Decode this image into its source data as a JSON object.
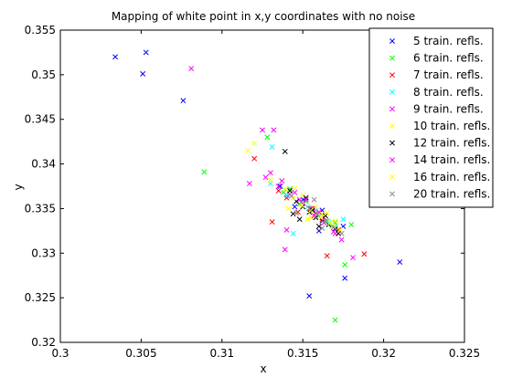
{
  "chart_data": {
    "type": "scatter",
    "title": "Mapping of white point in x,y coordinates with no noise",
    "xlabel": "x",
    "ylabel": "y",
    "xlim": [
      0.3,
      0.325
    ],
    "ylim": [
      0.32,
      0.355
    ],
    "xticks": [
      "0.3",
      "0.305",
      "0.31",
      "0.315",
      "0.32",
      "0.325"
    ],
    "yticks": [
      "0.32",
      "0.325",
      "0.33",
      "0.335",
      "0.34",
      "0.345",
      "0.35",
      "0.355"
    ],
    "grid": false,
    "legend_position": "top-right",
    "marker": "x",
    "series": [
      {
        "name": "5 train. refls.",
        "color": "#0000ff",
        "points": [
          [
            0.3034,
            0.352
          ],
          [
            0.3053,
            0.3525
          ],
          [
            0.3051,
            0.3501
          ],
          [
            0.3076,
            0.3471
          ],
          [
            0.3154,
            0.3252
          ],
          [
            0.3176,
            0.3272
          ],
          [
            0.321,
            0.329
          ],
          [
            0.3136,
            0.3375
          ],
          [
            0.315,
            0.336
          ],
          [
            0.3162,
            0.3348
          ],
          [
            0.3145,
            0.3352
          ],
          [
            0.3158,
            0.334
          ],
          [
            0.3168,
            0.333
          ],
          [
            0.314,
            0.3365
          ],
          [
            0.3175,
            0.333
          ],
          [
            0.316,
            0.3325
          ]
        ]
      },
      {
        "name": "6 train. refls.",
        "color": "#00ff00",
        "points": [
          [
            0.3089,
            0.3391
          ],
          [
            0.317,
            0.3225
          ],
          [
            0.3176,
            0.3287
          ],
          [
            0.318,
            0.3332
          ],
          [
            0.3128,
            0.343
          ],
          [
            0.3142,
            0.3372
          ],
          [
            0.3152,
            0.3358
          ],
          [
            0.316,
            0.3342
          ],
          [
            0.3165,
            0.3336
          ],
          [
            0.3148,
            0.3355
          ],
          [
            0.3138,
            0.3368
          ],
          [
            0.317,
            0.3334
          ]
        ]
      },
      {
        "name": "7 train. refls.",
        "color": "#ff0000",
        "points": [
          [
            0.3188,
            0.3299
          ],
          [
            0.3131,
            0.3335
          ],
          [
            0.3165,
            0.3297
          ],
          [
            0.312,
            0.3406
          ],
          [
            0.314,
            0.3362
          ],
          [
            0.3155,
            0.335
          ],
          [
            0.3162,
            0.3338
          ],
          [
            0.3147,
            0.3346
          ],
          [
            0.3172,
            0.3326
          ],
          [
            0.3135,
            0.337
          ],
          [
            0.3158,
            0.3345
          ]
        ]
      },
      {
        "name": "8 train. refls.",
        "color": "#00ffff",
        "points": [
          [
            0.3131,
            0.3419
          ],
          [
            0.3144,
            0.3322
          ],
          [
            0.3148,
            0.336
          ],
          [
            0.3158,
            0.3348
          ],
          [
            0.3166,
            0.3335
          ],
          [
            0.314,
            0.3365
          ],
          [
            0.3153,
            0.3352
          ],
          [
            0.317,
            0.3328
          ],
          [
            0.313,
            0.3378
          ],
          [
            0.3175,
            0.3338
          ]
        ]
      },
      {
        "name": "9 train. refls.",
        "color": "#ff00ff",
        "points": [
          [
            0.3081,
            0.3507
          ],
          [
            0.3117,
            0.3378
          ],
          [
            0.3125,
            0.3438
          ],
          [
            0.313,
            0.339
          ],
          [
            0.3139,
            0.3304
          ],
          [
            0.317,
            0.3322
          ],
          [
            0.3181,
            0.3295
          ],
          [
            0.3142,
            0.3366
          ],
          [
            0.3156,
            0.335
          ],
          [
            0.3163,
            0.334
          ],
          [
            0.3148,
            0.336
          ],
          [
            0.3135,
            0.3375
          ]
        ]
      },
      {
        "name": "10 train. refls.",
        "color": "#ffff00",
        "points": [
          [
            0.3116,
            0.3415
          ],
          [
            0.3141,
            0.335
          ],
          [
            0.317,
            0.3336
          ],
          [
            0.315,
            0.3365
          ],
          [
            0.3158,
            0.3352
          ],
          [
            0.3162,
            0.3344
          ],
          [
            0.3145,
            0.3372
          ],
          [
            0.313,
            0.3382
          ],
          [
            0.3155,
            0.334
          ],
          [
            0.3168,
            0.333
          ]
        ]
      },
      {
        "name": "12 train. refls.",
        "color": "#000000",
        "points": [
          [
            0.3139,
            0.3414
          ],
          [
            0.3142,
            0.337
          ],
          [
            0.3146,
            0.3358
          ],
          [
            0.315,
            0.3352
          ],
          [
            0.3154,
            0.3346
          ],
          [
            0.3158,
            0.334
          ],
          [
            0.3162,
            0.3336
          ],
          [
            0.3166,
            0.3332
          ],
          [
            0.317,
            0.3327
          ],
          [
            0.3148,
            0.3338
          ],
          [
            0.3156,
            0.3348
          ],
          [
            0.316,
            0.333
          ],
          [
            0.3144,
            0.3344
          ],
          [
            0.3152,
            0.3362
          ],
          [
            0.3164,
            0.3342
          ],
          [
            0.3172,
            0.3322
          ]
        ]
      },
      {
        "name": "14 train. refls.",
        "color": "#ff00ff",
        "points": [
          [
            0.3132,
            0.3438
          ],
          [
            0.3127,
            0.3385
          ],
          [
            0.3137,
            0.3381
          ],
          [
            0.3145,
            0.3368
          ],
          [
            0.315,
            0.3356
          ],
          [
            0.3157,
            0.3342
          ],
          [
            0.3163,
            0.3334
          ],
          [
            0.3169,
            0.3324
          ],
          [
            0.314,
            0.3326
          ],
          [
            0.3174,
            0.3315
          ],
          [
            0.3152,
            0.336
          ],
          [
            0.316,
            0.3346
          ]
        ]
      },
      {
        "name": "16 train. refls.",
        "color": "#ffff00",
        "points": [
          [
            0.312,
            0.3423
          ],
          [
            0.3144,
            0.3362
          ],
          [
            0.3149,
            0.3354
          ],
          [
            0.3155,
            0.3348
          ],
          [
            0.3161,
            0.334
          ],
          [
            0.3167,
            0.3334
          ],
          [
            0.3173,
            0.3326
          ],
          [
            0.3139,
            0.3372
          ],
          [
            0.3153,
            0.3338
          ],
          [
            0.3165,
            0.3345
          ]
        ]
      },
      {
        "name": "20 train. refls.",
        "color": "#888888",
        "points": [
          [
            0.3143,
            0.3364
          ],
          [
            0.3149,
            0.3357
          ],
          [
            0.3154,
            0.335
          ],
          [
            0.3159,
            0.3343
          ],
          [
            0.3164,
            0.3336
          ],
          [
            0.3169,
            0.3329
          ],
          [
            0.3174,
            0.3322
          ],
          [
            0.3146,
            0.3345
          ],
          [
            0.3157,
            0.336
          ],
          [
            0.3162,
            0.3328
          ]
        ]
      }
    ]
  }
}
